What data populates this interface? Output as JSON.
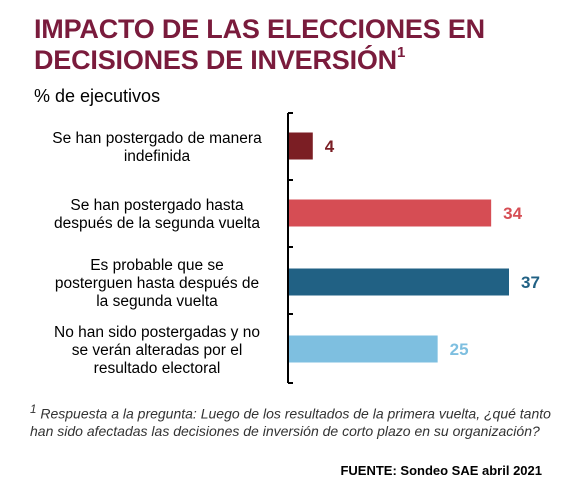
{
  "header": {
    "title_line1": "IMPACTO DE LAS ELECCIONES EN",
    "title_line2": "DECISIONES DE INVERSIÓN",
    "title_sup": "1",
    "subtitle": "% de ejecutivos"
  },
  "chart_data": {
    "type": "bar",
    "orientation": "horizontal",
    "categories": [
      [
        "Se han postergado de manera",
        "indefinida"
      ],
      [
        "Se han postergado hasta",
        "después de la segunda vuelta"
      ],
      [
        "Es probable que se",
        "posterguen hasta después de",
        "la segunda vuelta"
      ],
      [
        "No han sido postergadas y no",
        "se verán alteradas por el",
        "resultado electoral"
      ]
    ],
    "values": [
      4,
      34,
      37,
      25
    ],
    "value_labels": [
      "4",
      "34",
      "37",
      "25"
    ],
    "colors": [
      "#7b1e24",
      "#d64d54",
      "#216184",
      "#7ebfe0"
    ],
    "xlim": [
      0,
      37
    ],
    "grid": false,
    "legend": "none"
  },
  "footer": {
    "footnote_sup": "1",
    "footnote_text": "Respuesta a la pregunta: Luego de los resultados de la primera vuelta, ¿qué tanto han sido afectadas las decisiones de inversión de corto plazo en su organización?",
    "source": "FUENTE: Sondeo SAE abril 2021"
  }
}
